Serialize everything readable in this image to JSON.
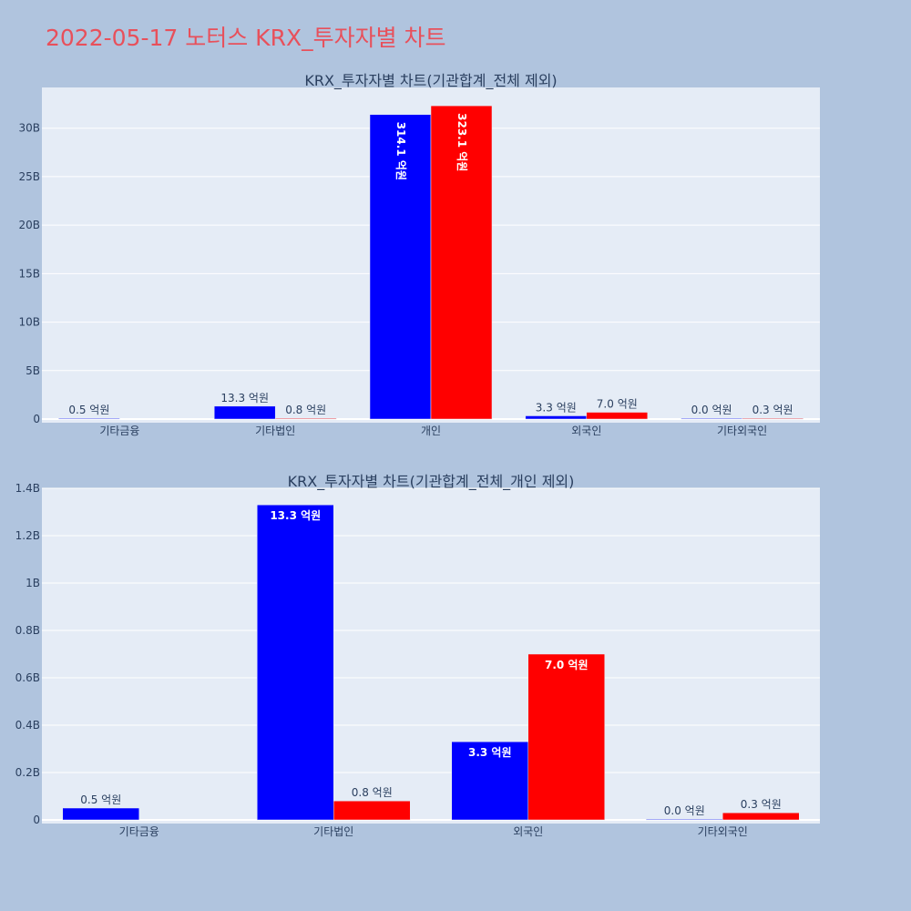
{
  "page": {
    "title": "2022-05-17 노터스 KRX_투자자별 차트",
    "background": "#b0c4de",
    "title_color": "#e8505b"
  },
  "chart_data": [
    {
      "type": "bar",
      "title": "KRX_투자자별 차트(기관합계_전체 제외)",
      "categories": [
        "기타금융",
        "기타법인",
        "개인",
        "외국인",
        "기타외국인"
      ],
      "series": [
        {
          "color": "#0000ff",
          "values": [
            0.05,
            1.33,
            31.41,
            0.33,
            0.0
          ],
          "labels": [
            "0.5 억원",
            "13.3 억원",
            "314.1 억원",
            "3.3 억원",
            "0.0 억원"
          ]
        },
        {
          "color": "#ff0000",
          "values": [
            null,
            0.08,
            32.31,
            0.7,
            0.03
          ],
          "labels": [
            null,
            "0.8 억원",
            "323.1 억원",
            "7.0 억원",
            "0.3 억원"
          ]
        }
      ],
      "ylim": [
        0,
        34.2
      ],
      "yticks": [
        0,
        5,
        10,
        15,
        20,
        25,
        30
      ],
      "ytick_labels": [
        "0",
        "5B",
        "10B",
        "15B",
        "20B",
        "25B",
        "30B"
      ],
      "unit_note": "values in billions (B)",
      "grid": true,
      "plot_bg": "#e5ecf6"
    },
    {
      "type": "bar",
      "title": "KRX_투자자별 차트(기관합계_전체_개인 제외)",
      "categories": [
        "기타금융",
        "기타법인",
        "외국인",
        "기타외국인"
      ],
      "series": [
        {
          "color": "#0000ff",
          "values": [
            0.05,
            1.33,
            0.33,
            0.0
          ],
          "labels": [
            "0.5 억원",
            "13.3 억원",
            "3.3 억원",
            "0.0 억원"
          ]
        },
        {
          "color": "#ff0000",
          "values": [
            null,
            0.08,
            0.7,
            0.03
          ],
          "labels": [
            null,
            "0.8 억원",
            "7.0 억원",
            "0.3 억원"
          ]
        }
      ],
      "ylim": [
        0,
        1.4
      ],
      "yticks": [
        0,
        0.2,
        0.4,
        0.6,
        0.8,
        1.0,
        1.2,
        1.4
      ],
      "ytick_labels": [
        "0",
        "0.2B",
        "0.4B",
        "0.6B",
        "0.8B",
        "1B",
        "1.2B",
        "1.4B"
      ],
      "unit_note": "values in billions (B)",
      "grid": true,
      "plot_bg": "#e5ecf6"
    }
  ]
}
